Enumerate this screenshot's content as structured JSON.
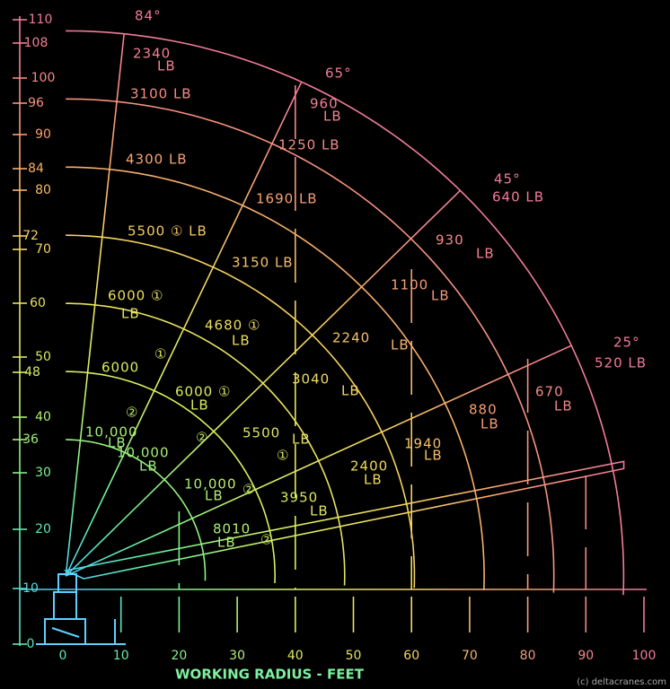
{
  "axis": {
    "y_labels": [
      "110",
      "108",
      "100",
      "96",
      "90",
      "84",
      "80",
      "72",
      "70",
      "60",
      "50",
      "48",
      "40",
      "36",
      "30",
      "20",
      "10",
      "0"
    ],
    "x_labels": [
      "0",
      "10",
      "20",
      "30",
      "40",
      "50",
      "60",
      "70",
      "80",
      "90",
      "100"
    ],
    "title": "WORKING RADIUS - FEET"
  },
  "angle_labels": [
    "84°",
    "65°",
    "45°",
    "25°"
  ],
  "load_labels": [
    "2340",
    "LB",
    "3100 LB",
    "4300 LB",
    "5500 ① LB",
    "6000 ①",
    "LB",
    "①",
    "6000",
    "②",
    "10,000",
    "LB",
    "10,000",
    "LB",
    "6000 ①",
    "LB",
    "4680 ①",
    "LB",
    "3150 LB",
    "1690 LB",
    "1250 LB",
    "960",
    "LB",
    "640 LB",
    "520 LB",
    "930",
    "LB",
    "1100",
    "LB",
    "2240",
    "LB",
    "3040",
    "LB",
    "5500",
    "LB",
    "①",
    "②",
    "10,000",
    "LB",
    "②",
    "3950",
    "LB",
    "2400",
    "LB",
    "1940",
    "LB",
    "8010",
    "LB",
    "②",
    "880",
    "LB",
    "670",
    "LB"
  ],
  "credit": "(c) deltacranes.com"
}
